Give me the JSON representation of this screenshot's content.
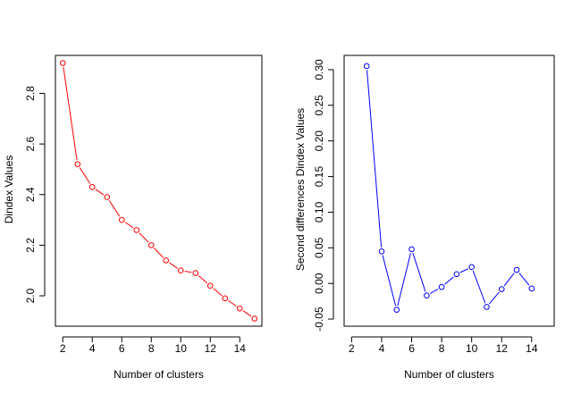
{
  "chart_data": [
    {
      "type": "line",
      "xlabel": "Number of clusters",
      "ylabel": "Dindex Values",
      "color": "#ff0000",
      "xlim": [
        1.5,
        15.5
      ],
      "ylim": [
        1.88,
        2.95
      ],
      "xticks": [
        2,
        4,
        6,
        8,
        10,
        12,
        14
      ],
      "yticks": [
        2.0,
        2.2,
        2.4,
        2.6,
        2.8
      ],
      "ytick_labels": [
        "2.0",
        "2.2",
        "2.4",
        "2.6",
        "2.8"
      ],
      "series": [
        {
          "x": [
            2,
            3,
            4,
            5,
            6,
            7,
            8,
            9,
            10,
            11,
            12,
            13,
            14,
            15
          ],
          "y": [
            2.92,
            2.52,
            2.43,
            2.39,
            2.3,
            2.26,
            2.2,
            2.14,
            2.1,
            2.09,
            2.04,
            1.99,
            1.95,
            1.91
          ]
        }
      ]
    },
    {
      "type": "line",
      "xlabel": "Number of clusters",
      "ylabel": "Second differences Dindex Values",
      "color": "#0000ff",
      "xlim": [
        1.5,
        15.5
      ],
      "ylim": [
        -0.06,
        0.32
      ],
      "xticks": [
        2,
        4,
        6,
        8,
        10,
        12,
        14
      ],
      "yticks": [
        -0.05,
        0.0,
        0.05,
        0.1,
        0.15,
        0.2,
        0.25,
        0.3
      ],
      "ytick_labels": [
        "-0.05",
        "0.00",
        "0.05",
        "0.10",
        "0.15",
        "0.20",
        "0.25",
        "0.30"
      ],
      "series": [
        {
          "x": [
            3,
            4,
            5,
            6,
            7,
            8,
            9,
            10,
            11,
            12,
            13,
            14
          ],
          "y": [
            0.305,
            0.045,
            -0.037,
            0.048,
            -0.017,
            -0.005,
            0.013,
            0.023,
            -0.033,
            -0.008,
            0.019,
            -0.007
          ]
        }
      ]
    }
  ]
}
